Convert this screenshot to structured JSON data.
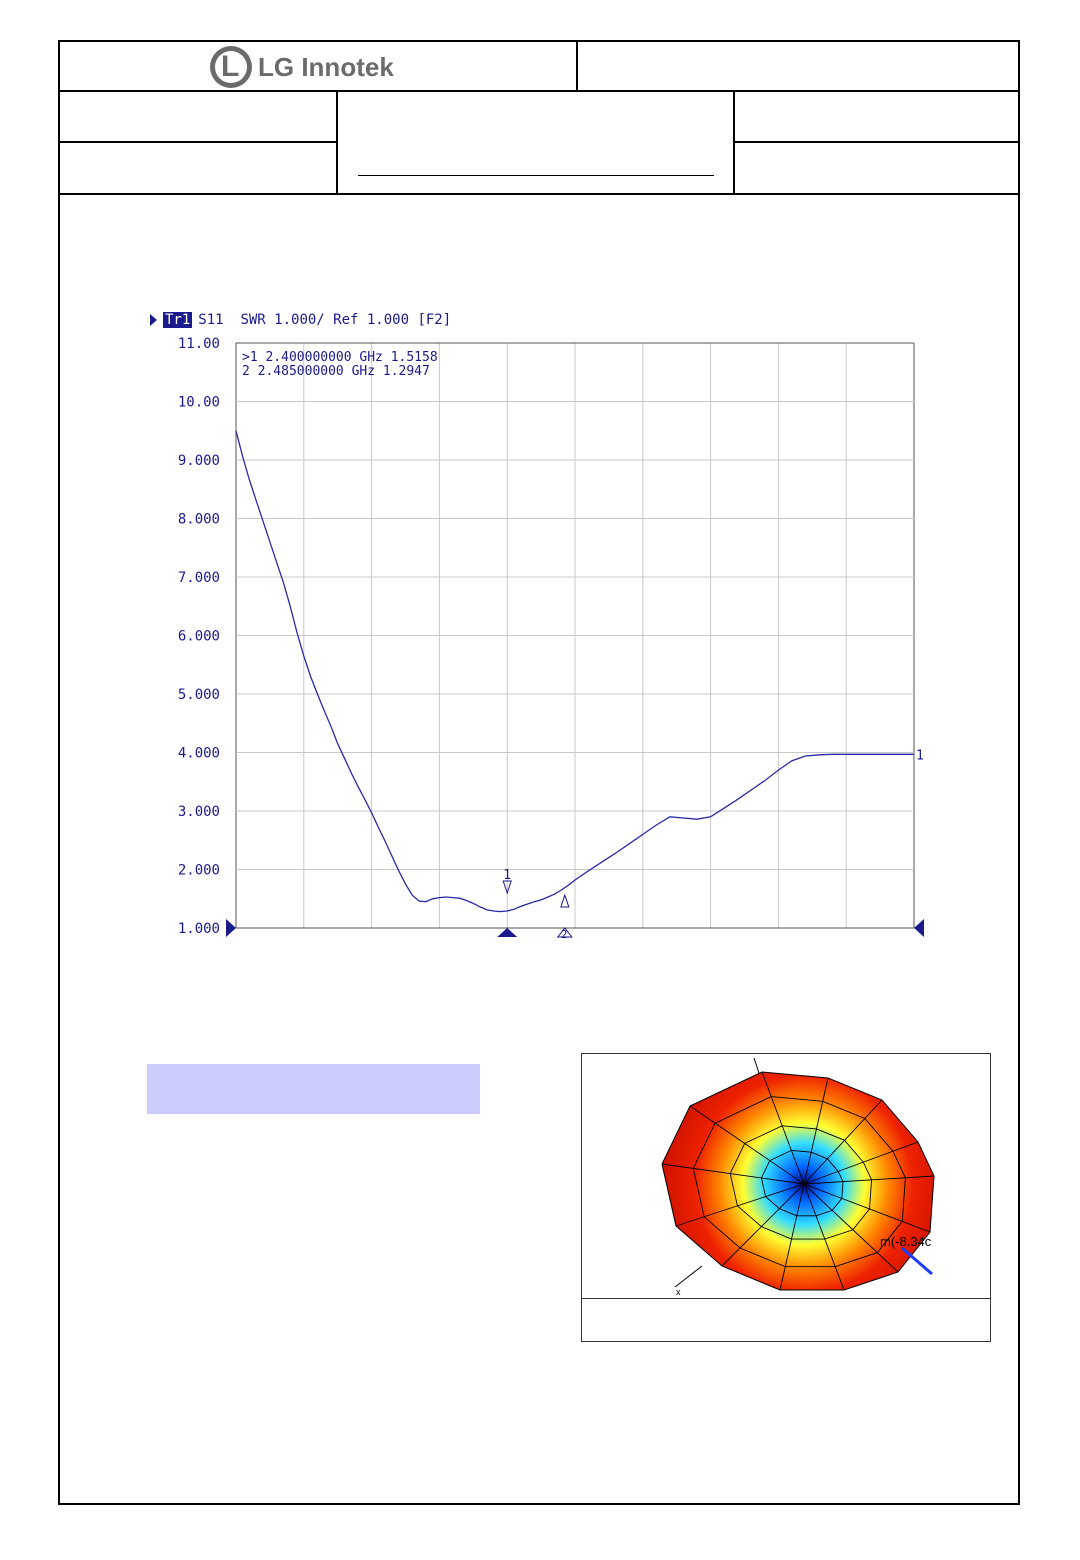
{
  "header": {
    "company": "LG Innotek",
    "logo_icon": "lg-logo-icon"
  },
  "chart_data": {
    "type": "line",
    "trace_label": "Tr1",
    "trace_header": "S11  SWR 1.000/ Ref 1.000 [F2]",
    "ylim": [
      1.0,
      11.0
    ],
    "y_ticks": [
      "11.00",
      "10.00",
      "9.000",
      "8.000",
      "7.000",
      "6.000",
      "5.000",
      "4.000",
      "3.000",
      "2.000",
      "1.000"
    ],
    "grid": true,
    "x_divisions": 10,
    "markers": [
      {
        "label": ">1",
        "freq": "2.400000000 GHz",
        "value": "1.5158"
      },
      {
        "label": " 2",
        "freq": "2.485000000 GHz",
        "value": "1.2947"
      }
    ],
    "marker_flags": [
      "1",
      "2"
    ],
    "end_label": "1",
    "series": [
      {
        "x": [
          0,
          0.1,
          0.2,
          0.3,
          0.4,
          0.5,
          0.6,
          0.7,
          0.8,
          0.9,
          1.0,
          1.1,
          1.2,
          1.3,
          1.4,
          1.5,
          1.6,
          1.7,
          1.8,
          1.9,
          2.0,
          2.1,
          2.2,
          2.3,
          2.4,
          2.5,
          2.6,
          2.7,
          2.8,
          2.9,
          3.0,
          3.1,
          3.2,
          3.3,
          3.4,
          3.5,
          3.6,
          3.7,
          3.8,
          3.9,
          4.0,
          4.1,
          4.2,
          4.3,
          4.4,
          4.5,
          4.6,
          4.7,
          4.8,
          4.9,
          5.0,
          5.2,
          5.4,
          5.6,
          5.8,
          6.0,
          6.2,
          6.4,
          6.6,
          6.8,
          7.0,
          7.2,
          7.4,
          7.6,
          7.8,
          8.0,
          8.2,
          8.4,
          8.6,
          8.8,
          9.0,
          9.2,
          9.4,
          9.6,
          9.8,
          10.0
        ],
        "values": [
          9.5,
          9.05,
          8.65,
          8.3,
          7.95,
          7.6,
          7.25,
          6.9,
          6.5,
          6.05,
          5.65,
          5.3,
          5.0,
          4.72,
          4.45,
          4.15,
          3.9,
          3.65,
          3.42,
          3.2,
          2.97,
          2.72,
          2.48,
          2.23,
          1.98,
          1.75,
          1.56,
          1.46,
          1.45,
          1.5,
          1.52,
          1.53,
          1.52,
          1.51,
          1.47,
          1.42,
          1.36,
          1.31,
          1.29,
          1.28,
          1.29,
          1.32,
          1.37,
          1.41,
          1.45,
          1.48,
          1.53,
          1.58,
          1.65,
          1.73,
          1.82,
          1.98,
          2.13,
          2.28,
          2.44,
          2.6,
          2.76,
          2.9,
          2.88,
          2.86,
          2.9,
          3.05,
          3.2,
          3.36,
          3.52,
          3.7,
          3.86,
          3.94,
          3.96,
          3.97,
          3.97,
          3.97,
          3.97,
          3.97,
          3.97,
          3.97
        ]
      }
    ]
  },
  "pattern": {
    "readout": "m(-8.34c",
    "axis_label": "x"
  }
}
